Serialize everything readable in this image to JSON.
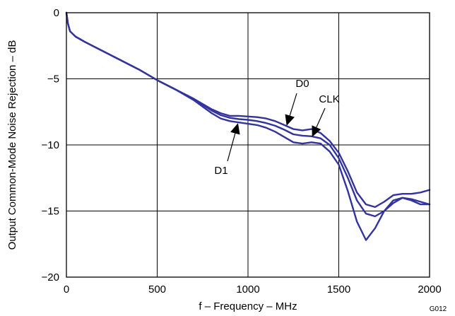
{
  "chart_data": {
    "type": "line",
    "title": "",
    "xlabel": "f – Frequency – MHz",
    "ylabel": "Output Common-Mode Noise Rejection – dB",
    "xlim": [
      0,
      2000
    ],
    "ylim": [
      -20,
      0
    ],
    "xticks": [
      0,
      500,
      1000,
      1500,
      2000
    ],
    "xtick_labels": [
      "0",
      "500",
      "1000",
      "1500",
      "2000"
    ],
    "yticks": [
      0,
      -5,
      -10,
      -15,
      -20
    ],
    "ytick_labels": [
      "0",
      "−5",
      "−10",
      "−15",
      "−20"
    ],
    "grid": true,
    "line_color": "#3333a0",
    "figure_id": "G012",
    "series": [
      {
        "name": "D0",
        "points": [
          [
            0,
            0
          ],
          [
            8,
            -0.8
          ],
          [
            20,
            -1.4
          ],
          [
            50,
            -1.8
          ],
          [
            100,
            -2.2
          ],
          [
            200,
            -2.9
          ],
          [
            300,
            -3.6
          ],
          [
            400,
            -4.3
          ],
          [
            500,
            -5.1
          ],
          [
            600,
            -5.8
          ],
          [
            700,
            -6.5
          ],
          [
            800,
            -7.3
          ],
          [
            850,
            -7.6
          ],
          [
            900,
            -7.8
          ],
          [
            950,
            -7.8
          ],
          [
            1000,
            -7.85
          ],
          [
            1050,
            -7.9
          ],
          [
            1100,
            -8.0
          ],
          [
            1150,
            -8.2
          ],
          [
            1200,
            -8.5
          ],
          [
            1250,
            -8.8
          ],
          [
            1300,
            -8.9
          ],
          [
            1350,
            -8.8
          ],
          [
            1400,
            -9.1
          ],
          [
            1450,
            -9.7
          ],
          [
            1500,
            -10.6
          ],
          [
            1550,
            -12.0
          ],
          [
            1600,
            -13.6
          ],
          [
            1650,
            -14.5
          ],
          [
            1700,
            -14.7
          ],
          [
            1750,
            -14.3
          ],
          [
            1800,
            -13.8
          ],
          [
            1850,
            -13.7
          ],
          [
            1900,
            -13.7
          ],
          [
            1950,
            -13.6
          ],
          [
            2000,
            -13.4
          ]
        ]
      },
      {
        "name": "CLK",
        "points": [
          [
            0,
            0
          ],
          [
            8,
            -0.8
          ],
          [
            20,
            -1.4
          ],
          [
            50,
            -1.8
          ],
          [
            100,
            -2.2
          ],
          [
            200,
            -2.9
          ],
          [
            300,
            -3.6
          ],
          [
            400,
            -4.3
          ],
          [
            500,
            -5.1
          ],
          [
            600,
            -5.8
          ],
          [
            700,
            -6.5
          ],
          [
            800,
            -7.4
          ],
          [
            850,
            -7.75
          ],
          [
            900,
            -7.95
          ],
          [
            950,
            -8.05
          ],
          [
            1000,
            -8.1
          ],
          [
            1050,
            -8.2
          ],
          [
            1100,
            -8.35
          ],
          [
            1150,
            -8.55
          ],
          [
            1200,
            -8.85
          ],
          [
            1250,
            -9.2
          ],
          [
            1300,
            -9.3
          ],
          [
            1350,
            -9.35
          ],
          [
            1400,
            -9.5
          ],
          [
            1450,
            -10.0
          ],
          [
            1500,
            -11.0
          ],
          [
            1550,
            -12.5
          ],
          [
            1600,
            -14.2
          ],
          [
            1650,
            -15.2
          ],
          [
            1700,
            -15.4
          ],
          [
            1750,
            -15.0
          ],
          [
            1800,
            -14.4
          ],
          [
            1850,
            -14.0
          ],
          [
            1900,
            -14.1
          ],
          [
            1950,
            -14.3
          ],
          [
            2000,
            -14.5
          ]
        ]
      },
      {
        "name": "D1",
        "points": [
          [
            0,
            0
          ],
          [
            8,
            -0.8
          ],
          [
            20,
            -1.4
          ],
          [
            50,
            -1.8
          ],
          [
            100,
            -2.2
          ],
          [
            200,
            -2.9
          ],
          [
            300,
            -3.6
          ],
          [
            400,
            -4.3
          ],
          [
            500,
            -5.1
          ],
          [
            600,
            -5.8
          ],
          [
            700,
            -6.6
          ],
          [
            800,
            -7.6
          ],
          [
            850,
            -8.0
          ],
          [
            900,
            -8.2
          ],
          [
            950,
            -8.3
          ],
          [
            1000,
            -8.4
          ],
          [
            1050,
            -8.5
          ],
          [
            1100,
            -8.7
          ],
          [
            1150,
            -9.0
          ],
          [
            1200,
            -9.4
          ],
          [
            1250,
            -9.8
          ],
          [
            1300,
            -9.9
          ],
          [
            1350,
            -9.8
          ],
          [
            1400,
            -9.9
          ],
          [
            1450,
            -10.5
          ],
          [
            1500,
            -11.5
          ],
          [
            1550,
            -13.5
          ],
          [
            1600,
            -15.8
          ],
          [
            1650,
            -17.2
          ],
          [
            1700,
            -16.3
          ],
          [
            1750,
            -15.0
          ],
          [
            1800,
            -14.2
          ],
          [
            1850,
            -14.0
          ],
          [
            1900,
            -14.2
          ],
          [
            1950,
            -14.5
          ],
          [
            2000,
            -14.5
          ]
        ]
      }
    ],
    "annotations": [
      {
        "label": "D0",
        "series": "D0"
      },
      {
        "label": "CLK",
        "series": "CLK"
      },
      {
        "label": "D1",
        "series": "D1"
      }
    ]
  }
}
